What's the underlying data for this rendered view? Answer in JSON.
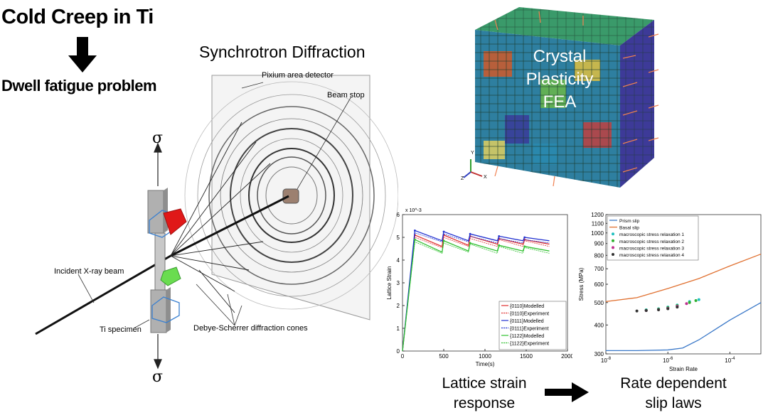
{
  "title": "Cold Creep in Ti",
  "subtitle": "Dwell fatigue problem",
  "synchrotron": {
    "title": "Synchrotron Diffraction",
    "detector_label": "Pixium area detector",
    "beamstop_label": "Beam stop",
    "beam_label": "Incident X-ray beam",
    "specimen_label": "Ti specimen",
    "cones_label": "Debye-Scherrer diffraction cones",
    "sigma_top": "σ",
    "sigma_bottom": "σ"
  },
  "fea": {
    "line1": "Crystal",
    "line2": "Plasticity",
    "line3": "FEA",
    "axis_y": "Y",
    "axis_x": "X",
    "axis_z": "Z"
  },
  "captions": {
    "lattice_line1": "Lattice strain",
    "lattice_line2": "response",
    "rate_line1": "Rate dependent",
    "rate_line2": "slip laws"
  },
  "colors": {
    "modelled_0110": "#e03030",
    "modelled_0111": "#2030d0",
    "modelled_1122": "#30c030",
    "prism": "#3a78c8",
    "basal": "#e07030"
  },
  "chart_data": [
    {
      "type": "line",
      "title": "",
      "xlabel": "Time(s)",
      "ylabel": "Lattice Strain",
      "exponent_label": "x 10^-3",
      "xlim": [
        0,
        2000
      ],
      "ylim": [
        0,
        6
      ],
      "xticks": [
        "0",
        "500",
        "1000",
        "1500",
        "2000"
      ],
      "yticks": [
        "0",
        "1",
        "2",
        "3",
        "4",
        "5",
        "6"
      ],
      "x": [
        0,
        150,
        480,
        500,
        800,
        820,
        1150,
        1170,
        1460,
        1480,
        1780
      ],
      "legend_placement": "bottom-right",
      "series": [
        {
          "name": "{0110}Modelled",
          "values": [
            0,
            5.1,
            4.6,
            5.1,
            4.65,
            5.05,
            4.7,
            4.95,
            4.7,
            4.9,
            4.7
          ]
        },
        {
          "name": "{0110}Experiment",
          "values": [
            0,
            5.0,
            4.55,
            5.0,
            4.6,
            4.95,
            4.6,
            4.9,
            4.6,
            4.85,
            4.6
          ]
        },
        {
          "name": "{0111}Modelled",
          "values": [
            0,
            5.3,
            4.85,
            5.25,
            4.85,
            5.15,
            4.85,
            5.05,
            4.85,
            5.0,
            4.85
          ]
        },
        {
          "name": "{0111}Experiment",
          "values": [
            0,
            5.2,
            4.8,
            5.15,
            4.8,
            5.05,
            4.75,
            4.95,
            4.75,
            4.9,
            4.75
          ]
        },
        {
          "name": "{1122}Modelled",
          "values": [
            0,
            4.9,
            4.35,
            4.85,
            4.4,
            4.75,
            4.4,
            4.65,
            4.4,
            4.6,
            4.4
          ]
        },
        {
          "name": "{1122}Experiment",
          "values": [
            0,
            4.8,
            4.3,
            4.75,
            4.35,
            4.7,
            4.3,
            4.6,
            4.3,
            4.55,
            4.3
          ]
        }
      ]
    },
    {
      "type": "line",
      "title": "",
      "xlabel": "Strain Rate",
      "ylabel": "Stress (MPa)",
      "xscale": "log",
      "yscale": "log",
      "xlim": [
        1e-08,
        0.001
      ],
      "ylim": [
        300,
        1200
      ],
      "xticks": [
        "10^-8",
        "10^-6",
        "10^-4"
      ],
      "yticks": [
        "300",
        "400",
        "500",
        "600",
        "700",
        "800",
        "900",
        "1000",
        "1100",
        "1200"
      ],
      "legend_placement": "top-left",
      "series": [
        {
          "name": "Prism slip",
          "x": [
            1e-08,
            1e-07,
            1e-06,
            3e-06,
            1e-05,
            0.0001,
            0.001
          ],
          "values": [
            310,
            310,
            312,
            318,
            345,
            420,
            500
          ]
        },
        {
          "name": "Basal slip",
          "x": [
            1e-08,
            1e-07,
            1e-06,
            1e-05,
            0.0001,
            0.001
          ],
          "values": [
            505,
            525,
            575,
            635,
            720,
            810
          ]
        },
        {
          "name": "macroscopic stress relaxation 1",
          "x": [
            2e-07,
            5e-07,
            1e-06,
            2e-06,
            5e-06,
            1e-05
          ],
          "values": [
            465,
            470,
            478,
            488,
            505,
            515
          ]
        },
        {
          "name": "macroscopic stress relaxation 2",
          "x": [
            2e-07,
            5e-07,
            1e-06,
            2e-06,
            5e-06,
            8e-06
          ],
          "values": [
            463,
            468,
            475,
            485,
            500,
            510
          ]
        },
        {
          "name": "macroscopic stress relaxation 3",
          "x": [
            2e-07,
            5e-07,
            1e-06,
            2e-06,
            4e-06
          ],
          "values": [
            462,
            466,
            472,
            482,
            495
          ]
        },
        {
          "name": "macroscopic stress relaxation 4",
          "x": [
            1e-07,
            2e-07,
            5e-07,
            1e-06,
            2e-06
          ],
          "values": [
            460,
            462,
            465,
            470,
            478
          ]
        }
      ]
    }
  ]
}
